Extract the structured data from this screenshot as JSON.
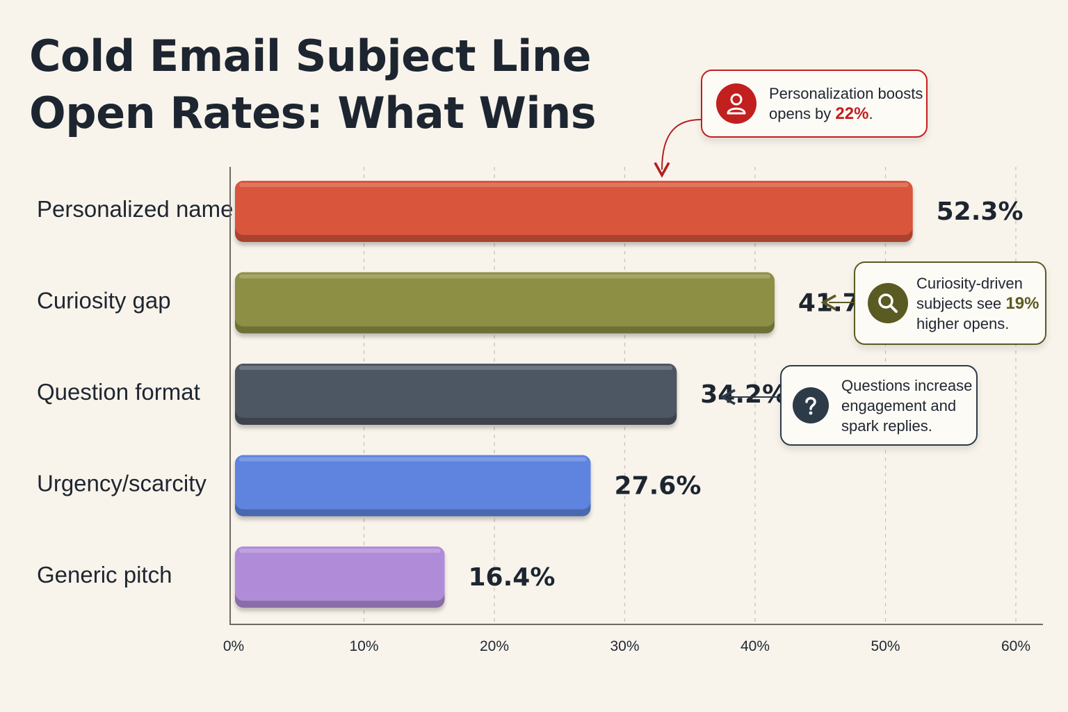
{
  "chart_data": {
    "type": "bar",
    "orientation": "horizontal",
    "title": "Cold Email Subject Line Open Rates: What Wins",
    "title_lines": [
      "Cold Email Subject Line",
      "Open Rates: What Wins"
    ],
    "categories": [
      "Personalized name",
      "Curiosity gap",
      "Question format",
      "Urgency/scarcity",
      "Generic pitch"
    ],
    "values": [
      52.3,
      41.7,
      34.2,
      27.6,
      16.4
    ],
    "value_labels": [
      "52.3%",
      "41.7%",
      "34.2%",
      "27.6%",
      "16.4%"
    ],
    "bar_colors": [
      "#d9543a",
      "#8d8f45",
      "#4d5663",
      "#5e84df",
      "#b08cd8"
    ],
    "xlim": [
      0,
      60
    ],
    "xticks": [
      0,
      10,
      20,
      30,
      40,
      50,
      60
    ],
    "xtick_labels": [
      "0%",
      "10%",
      "20%",
      "30%",
      "40%",
      "50%",
      "60%"
    ],
    "xlabel": "",
    "ylabel": "",
    "grid": "vertical dashed",
    "annotations": [
      {
        "icon": "person-icon",
        "color": "#c21f1f",
        "text_before": "Personalization boosts opens by ",
        "highlight": "22%",
        "text_after": ".",
        "points_to": "Personalized name"
      },
      {
        "icon": "magnifier-icon",
        "color": "#5a5a23",
        "text_before": "Curiosity-driven subjects see ",
        "highlight": "19%",
        "text_after": " higher opens.",
        "points_to": "Curiosity gap"
      },
      {
        "icon": "question-icon",
        "color": "#2d3a48",
        "text_before": "Questions increase engagement and spark replies.",
        "highlight": "",
        "text_after": "",
        "points_to": "Question format"
      }
    ]
  }
}
